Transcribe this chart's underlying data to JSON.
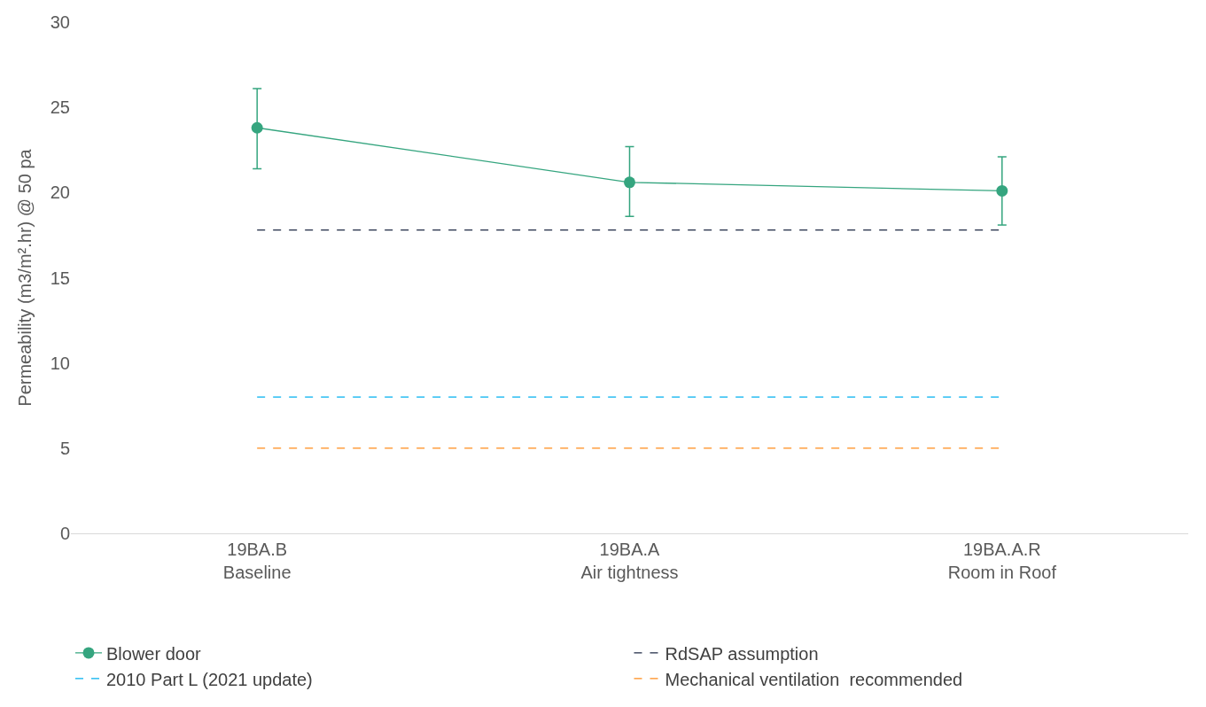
{
  "chart_data": {
    "type": "line",
    "ylabel": "Permeability (m3/m².hr) @ 50 pa",
    "categories": [
      "19BA.B\nBaseline",
      "19BA.A\nAir tightness",
      "19BA.A.R\nRoom in Roof"
    ],
    "series": [
      {
        "name": "Blower door",
        "color": "#35a57f",
        "values": [
          23.8,
          20.6,
          20.1
        ],
        "errors": [
          [
            21.4,
            26.1
          ],
          [
            18.6,
            22.7
          ],
          [
            18.1,
            22.1
          ]
        ],
        "marker": "circle",
        "line_style": "solid"
      },
      {
        "name": "RdSAP assumption",
        "color": "#1f2a44",
        "values": [
          17.8,
          17.8,
          17.8
        ],
        "marker": "none",
        "line_style": "dashed"
      },
      {
        "name": "2010 Part L (2021 update)",
        "color": "#00b0f0",
        "values": [
          8,
          8,
          8
        ],
        "marker": "none",
        "line_style": "dashed"
      },
      {
        "name": "Mechanical ventilation  recommended",
        "color": "#ff8c1a",
        "values": [
          5,
          5,
          5
        ],
        "marker": "none",
        "line_style": "dashed"
      }
    ],
    "ylim": [
      0,
      30
    ],
    "yticks": [
      0,
      5,
      10,
      15,
      20,
      25,
      30
    ],
    "legend": "bottom"
  }
}
